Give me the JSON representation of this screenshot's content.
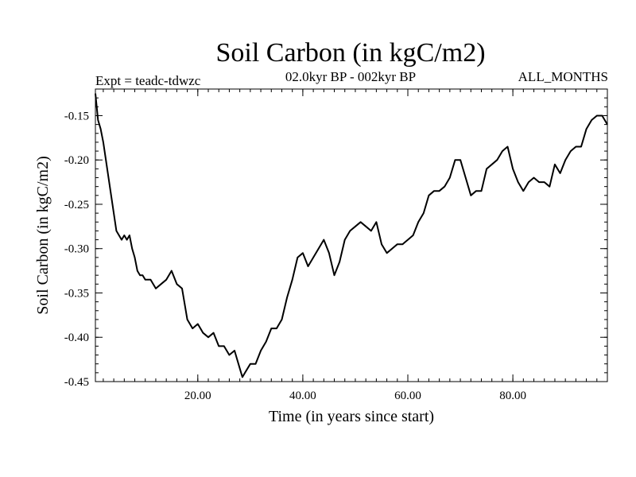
{
  "chart_data": {
    "type": "line",
    "title": "Soil Carbon (in kgC/m2)",
    "subtitle": "02.0kyr BP - 002kyr BP",
    "left_label": "Expt = teadc-tdwzc",
    "right_label": "ALL_MONTHS",
    "xlabel": "Time (in years since start)",
    "ylabel": "Soil Carbon (in kgC/m2)",
    "xlim": [
      0.5,
      98
    ],
    "ylim": [
      -0.45,
      -0.12
    ],
    "x_ticks": [
      20,
      40,
      60,
      80
    ],
    "x_tick_labels": [
      "20.00",
      "40.00",
      "60.00",
      "80.00"
    ],
    "y_ticks": [
      -0.45,
      -0.4,
      -0.35,
      -0.3,
      -0.25,
      -0.2,
      -0.15
    ],
    "y_tick_labels": [
      "-0.45",
      "-0.40",
      "-0.35",
      "-0.30",
      "-0.25",
      "-0.20",
      "-0.15"
    ],
    "grid": false,
    "legend": "none",
    "series": [
      {
        "name": "Soil Carbon",
        "color": "#000000",
        "x": [
          0.5,
          1.0,
          1.5,
          2.0,
          2.5,
          3.0,
          3.5,
          4.0,
          4.5,
          5.0,
          5.5,
          6.0,
          6.5,
          7.0,
          7.5,
          8.0,
          8.5,
          9.0,
          9.5,
          10.0,
          11.0,
          12.0,
          13.0,
          14.0,
          15.0,
          16.0,
          17.0,
          18.0,
          19.0,
          20.0,
          21.0,
          22.0,
          23.0,
          24.0,
          25.0,
          26.0,
          27.0,
          28.0,
          28.5,
          29.0,
          30.0,
          31.0,
          32.0,
          33.0,
          34.0,
          35.0,
          36.0,
          37.0,
          38.0,
          39.0,
          40.0,
          41.0,
          42.0,
          43.0,
          44.0,
          45.0,
          46.0,
          47.0,
          48.0,
          49.0,
          50.0,
          51.0,
          52.0,
          53.0,
          54.0,
          55.0,
          56.0,
          57.0,
          58.0,
          59.0,
          60.0,
          61.0,
          62.0,
          63.0,
          64.0,
          65.0,
          66.0,
          67.0,
          68.0,
          69.0,
          70.0,
          71.0,
          72.0,
          73.0,
          74.0,
          75.0,
          76.0,
          77.0,
          78.0,
          79.0,
          80.0,
          81.0,
          82.0,
          83.0,
          84.0,
          85.0,
          86.0,
          87.0,
          88.0,
          89.0,
          90.0,
          91.0,
          92.0,
          93.0,
          94.0,
          95.0,
          96.0,
          97.0,
          98.0
        ],
        "y": [
          -0.125,
          -0.155,
          -0.165,
          -0.18,
          -0.2,
          -0.22,
          -0.24,
          -0.26,
          -0.28,
          -0.285,
          -0.29,
          -0.285,
          -0.29,
          -0.285,
          -0.3,
          -0.31,
          -0.325,
          -0.33,
          -0.33,
          -0.335,
          -0.335,
          -0.345,
          -0.34,
          -0.335,
          -0.325,
          -0.34,
          -0.345,
          -0.38,
          -0.39,
          -0.385,
          -0.395,
          -0.4,
          -0.395,
          -0.41,
          -0.41,
          -0.42,
          -0.415,
          -0.435,
          -0.445,
          -0.44,
          -0.43,
          -0.43,
          -0.415,
          -0.405,
          -0.39,
          -0.39,
          -0.38,
          -0.355,
          -0.335,
          -0.31,
          -0.305,
          -0.32,
          -0.31,
          -0.3,
          -0.29,
          -0.305,
          -0.33,
          -0.315,
          -0.29,
          -0.28,
          -0.275,
          -0.27,
          -0.275,
          -0.28,
          -0.27,
          -0.295,
          -0.305,
          -0.3,
          -0.295,
          -0.295,
          -0.29,
          -0.285,
          -0.27,
          -0.26,
          -0.24,
          -0.235,
          -0.235,
          -0.23,
          -0.22,
          -0.2,
          -0.2,
          -0.22,
          -0.24,
          -0.235,
          -0.235,
          -0.21,
          -0.205,
          -0.2,
          -0.19,
          -0.185,
          -0.21,
          -0.225,
          -0.235,
          -0.225,
          -0.22,
          -0.225,
          -0.225,
          -0.23,
          -0.205,
          -0.215,
          -0.2,
          -0.19,
          -0.185,
          -0.185,
          -0.165,
          -0.155,
          -0.15,
          -0.15,
          -0.16
        ]
      }
    ]
  }
}
